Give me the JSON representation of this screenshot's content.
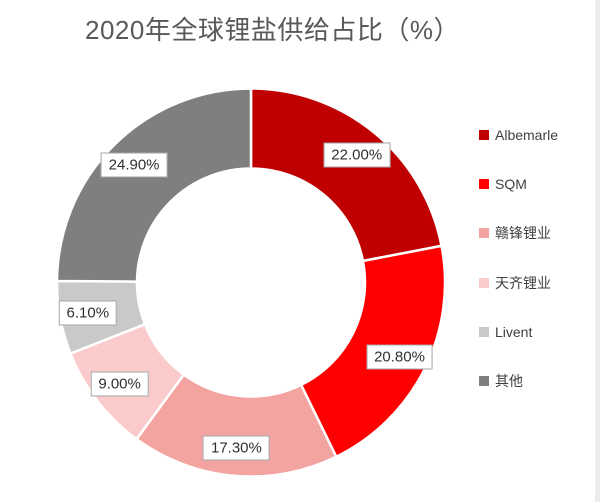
{
  "chart_data": {
    "type": "pie",
    "subtype": "donut",
    "title": "2020年全球锂盐供给占比（%）",
    "categories": [
      "Albemarle",
      "SQM",
      "赣锋锂业",
      "天齐锂业",
      "Livent",
      "其他"
    ],
    "values": [
      22.0,
      20.8,
      17.3,
      9.0,
      6.1,
      24.9
    ],
    "data_labels": [
      "22.00%",
      "20.80%",
      "17.30%",
      "9.00%",
      "6.10%",
      "24.90%"
    ],
    "colors": [
      "#C00000",
      "#FF0000",
      "#F3A3A0",
      "#FBCBCB",
      "#C9C9C9",
      "#7F7F7F"
    ],
    "slice_border_color": "#FFFFFF",
    "start_angle_deg": 0,
    "direction": "clockwise",
    "hole_ratio": 0.59,
    "legend_position": "right",
    "data_label_style": "boxed-percent",
    "title_color": "#595959",
    "legend_text_color": "#404040"
  }
}
